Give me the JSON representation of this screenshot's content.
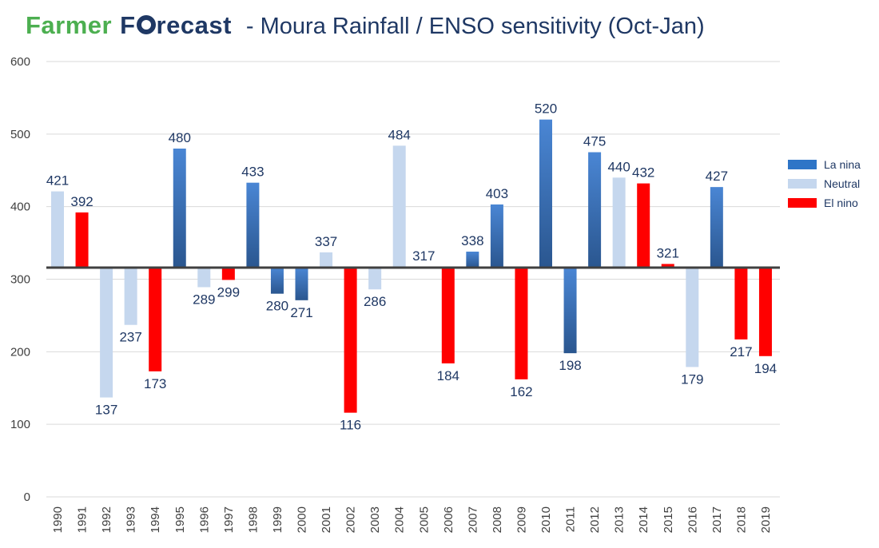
{
  "header": {
    "logo_farmer": "Farmer",
    "logo_fo_prefix": "F",
    "logo_fo_suffix": "recast",
    "title": "- Moura Rainfall / ENSO sensitivity (Oct-Jan)"
  },
  "colors": {
    "la_nina_top": "#4a86d4",
    "la_nina_bottom": "#2a568f",
    "neutral": "#c5d7ee",
    "el_nino": "#ff0000",
    "label": "#1f3864",
    "grid": "#d9d9d9",
    "baseline": "#404040"
  },
  "legend": [
    {
      "label": "La nina",
      "color": "#2e75c7"
    },
    {
      "label": "Neutral",
      "color": "#c5d7ee"
    },
    {
      "label": "El nino",
      "color": "#ff0000"
    }
  ],
  "chart_data": {
    "type": "bar",
    "title": "Moura Rainfall / ENSO sensitivity (Oct-Jan)",
    "xlabel": "",
    "ylabel": "",
    "ylim": [
      0,
      600
    ],
    "yticks": [
      0,
      100,
      200,
      300,
      400,
      500,
      600
    ],
    "baseline": 316,
    "grid": true,
    "legend_position": "right",
    "categories": [
      "1990",
      "1991",
      "1992",
      "1993",
      "1994",
      "1995",
      "1996",
      "1997",
      "1998",
      "1999",
      "2000",
      "2001",
      "2002",
      "2003",
      "2004",
      "2005",
      "2006",
      "2007",
      "2008",
      "2009",
      "2010",
      "2011",
      "2012",
      "2013",
      "2014",
      "2015",
      "2016",
      "2017",
      "2018",
      "2019"
    ],
    "values": [
      421,
      392,
      137,
      237,
      173,
      480,
      289,
      299,
      433,
      280,
      271,
      337,
      116,
      286,
      484,
      317,
      184,
      338,
      403,
      162,
      520,
      198,
      475,
      440,
      432,
      321,
      179,
      427,
      217,
      194
    ],
    "phase": [
      "Neutral",
      "El nino",
      "Neutral",
      "Neutral",
      "El nino",
      "La nina",
      "Neutral",
      "El nino",
      "La nina",
      "La nina",
      "La nina",
      "Neutral",
      "El nino",
      "Neutral",
      "Neutral",
      "Neutral",
      "El nino",
      "La nina",
      "La nina",
      "El nino",
      "La nina",
      "La nina",
      "La nina",
      "Neutral",
      "El nino",
      "El nino",
      "Neutral",
      "La nina",
      "El nino",
      "El nino"
    ]
  }
}
